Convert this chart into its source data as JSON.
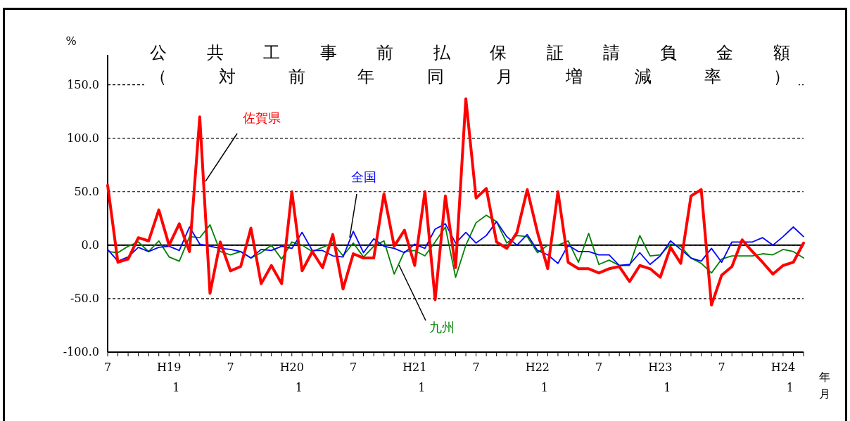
{
  "chart_data": {
    "type": "line",
    "title": "公共工事前払保証請負金額",
    "subtitle": "（対前年同月増減率）",
    "ylabel": "%",
    "xlabel": "年月",
    "categories": [
      "7",
      null,
      null,
      null,
      null,
      null,
      "H19 1",
      null,
      null,
      null,
      null,
      null,
      "7",
      null,
      null,
      null,
      null,
      null,
      "H20 1",
      null,
      null,
      null,
      null,
      null,
      "7",
      null,
      null,
      null,
      null,
      null,
      "H21 1",
      null,
      null,
      null,
      null,
      null,
      "7",
      null,
      null,
      null,
      null,
      null,
      "H22 1",
      null,
      null,
      null,
      null,
      null,
      "7",
      null,
      null,
      null,
      null,
      null,
      "H23 1",
      null,
      null,
      null,
      null,
      null,
      "7",
      null,
      null,
      null,
      null,
      null,
      "H24 1",
      null,
      null
    ],
    "series": [
      {
        "name": "九州",
        "color": "#008000",
        "values": [
          -6,
          -7,
          -1,
          3,
          -6,
          4,
          -11,
          -15,
          8,
          7,
          19,
          -6,
          -9,
          -6,
          -12,
          -7,
          0,
          -13,
          3,
          0,
          -6,
          -2,
          2,
          -10,
          2,
          -11,
          -1,
          4,
          -27,
          -6,
          -5,
          -10,
          3,
          17,
          -30,
          0,
          21,
          28,
          22,
          2,
          9,
          8,
          -7,
          0,
          0,
          4,
          -16,
          11,
          -18,
          -14,
          -19,
          -19,
          9,
          -10,
          -9,
          1,
          -1,
          -12,
          -17,
          -26,
          -13,
          -10,
          -10,
          -10,
          -8,
          -9,
          -4,
          -6,
          -12
        ]
      },
      {
        "name": "全国",
        "color": "#0000ff",
        "values": [
          -4,
          -15,
          -11,
          -2,
          -6,
          -2,
          -1,
          -5,
          17,
          1,
          -1,
          -3,
          -4,
          -6,
          -12,
          -4,
          -5,
          -1,
          -3,
          12,
          -5,
          -5,
          -10,
          -11,
          13,
          -7,
          6,
          -1,
          -3,
          -7,
          1,
          -3,
          15,
          20,
          2,
          12,
          2,
          9,
          22,
          8,
          0,
          10,
          -5,
          -9,
          -17,
          0,
          -6,
          -6,
          -9,
          -9,
          -19,
          -18,
          -7,
          -18,
          -10,
          4,
          -4,
          -12,
          -15,
          -3,
          -16,
          3,
          3,
          3,
          7,
          0,
          8,
          17,
          8
        ]
      },
      {
        "name": "佐賀県",
        "color": "#ff0000",
        "values": [
          56,
          -16,
          -13,
          7,
          4,
          33,
          0,
          20,
          -6,
          120,
          -45,
          3,
          -24,
          -20,
          16,
          -36,
          -19,
          -36,
          50,
          -24,
          -6,
          -21,
          10,
          -41,
          -8,
          -12,
          -12,
          48,
          -1,
          14,
          -19,
          50,
          -51,
          46,
          -21,
          137,
          44,
          53,
          3,
          -3,
          12,
          52,
          12,
          -22,
          50,
          -16,
          -22,
          -22,
          -26,
          -22,
          -20,
          -34,
          -19,
          -22,
          -30,
          -2,
          -17,
          46,
          52,
          -56,
          -28,
          -20,
          5,
          -6,
          -16,
          -27,
          -19,
          -16,
          2
        ]
      }
    ],
    "ylim": [
      -100,
      178
    ],
    "yticks": [
      {
        "value": -100,
        "label": "-100.0"
      },
      {
        "value": -50,
        "label": "-50.0"
      },
      {
        "value": 0,
        "label": "0.0"
      },
      {
        "value": 50,
        "label": "50.0"
      },
      {
        "value": 100,
        "label": "100.0"
      },
      {
        "value": 150,
        "label": "150.0"
      }
    ],
    "grid": "y",
    "ref_lines": [
      {
        "axis": "y",
        "value": 0
      }
    ]
  }
}
